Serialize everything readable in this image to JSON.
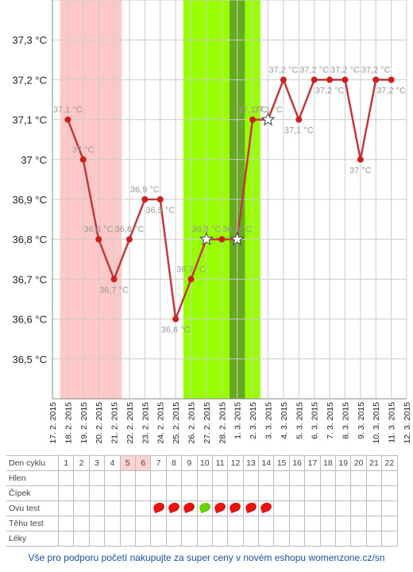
{
  "chart_data": {
    "type": "line",
    "ylim": [
      36.4,
      37.4
    ],
    "y_ticks": [
      {
        "value": 36.5,
        "label": "36,5 °C"
      },
      {
        "value": 36.6,
        "label": "36,6 °C"
      },
      {
        "value": 36.7,
        "label": "36,7 °C"
      },
      {
        "value": 36.8,
        "label": "36,8 °C"
      },
      {
        "value": 36.9,
        "label": "36,9 °C"
      },
      {
        "value": 37.0,
        "label": "37 °C"
      },
      {
        "value": 37.1,
        "label": "37,1 °C"
      },
      {
        "value": 37.2,
        "label": "37,2 °C"
      },
      {
        "value": 37.3,
        "label": "37,3 °C"
      }
    ],
    "categories": [
      "17. 2. 2015",
      "18. 2. 2015",
      "19. 2. 2015",
      "20. 2. 2015",
      "21. 2. 2015",
      "22. 2. 2015",
      "23. 2. 2015",
      "24. 2. 2015",
      "25. 2. 2015",
      "26. 2. 2015",
      "27. 2. 2015",
      "28. 2. 2015",
      "1. 3. 2015",
      "2. 3. 2015",
      "3. 3. 2015",
      "4. 3. 2015",
      "5. 3. 2015",
      "6. 3. 2015",
      "7. 3. 2015",
      "8. 3. 2015",
      "9. 3. 2015",
      "10. 3. 2015",
      "11. 3. 2015",
      "12. 3. 2015"
    ],
    "series": [
      {
        "values": [
          null,
          37.1,
          37.0,
          36.8,
          36.7,
          36.8,
          36.9,
          36.9,
          36.6,
          36.7,
          36.8,
          36.8,
          36.8,
          37.1,
          37.1,
          37.2,
          37.1,
          37.2,
          37.2,
          37.2,
          37.0,
          37.2,
          37.2,
          null
        ],
        "labels": [
          null,
          "37,1 °C",
          "37 °C",
          "36,8 °C",
          "36,7 °C",
          "36,8 °C",
          "36,9 °C",
          "36,9 °C",
          "36,6 °C",
          "36,7 °C",
          "36,8 °C",
          null,
          "36,8 °C",
          "37,1 °C",
          "37,1 °C",
          "37,2 °C",
          "37,1 °C",
          "37,2 °C",
          "37,2 °C",
          "37,2 °C",
          "37 °C",
          "37,2 °C",
          "37,2 °C",
          null
        ],
        "label_pos": [
          null,
          "above",
          "above",
          "above",
          "below",
          "above",
          "above",
          "below",
          "below",
          "above",
          "above",
          null,
          "above",
          "above",
          "above",
          "above",
          "below",
          "above",
          "below",
          "above",
          "below",
          "above",
          "below",
          null
        ],
        "star_markers": [
          10,
          12,
          14
        ]
      }
    ],
    "bands": [
      {
        "from": 1,
        "to": 4,
        "color": "#ffc8c8"
      },
      {
        "from": 9,
        "to": 13,
        "color": "#99ff00"
      },
      {
        "from": 12,
        "to": 12,
        "color": "#66aa22"
      }
    ],
    "line_color": "#c0393b",
    "point_color": "#cc1f1f",
    "grid": true
  },
  "table": {
    "row_labels": [
      "Den cyklu",
      "Hlen",
      "Čípek",
      "Ovu test",
      "Těhu test",
      "Léky"
    ],
    "cycle_days": [
      "1",
      "2",
      "3",
      "4",
      "5",
      "6",
      "7",
      "8",
      "9",
      "10",
      "11",
      "12",
      "13",
      "14",
      "15",
      "16",
      "17",
      "18",
      "19",
      "20",
      "21",
      "22"
    ],
    "luteal_days": [
      5,
      6
    ],
    "ovu_test": {
      "7": "#e8130f",
      "8": "#e8130f",
      "9": "#e8130f",
      "10": "#6bd400",
      "11": "#e8130f",
      "12": "#e8130f",
      "13": "#e8130f",
      "14": "#e8130f"
    }
  },
  "footer": {
    "text": "Vše pro podporu početí nakupujte za super ceny v novém eshopu womenzone.cz/sn"
  }
}
